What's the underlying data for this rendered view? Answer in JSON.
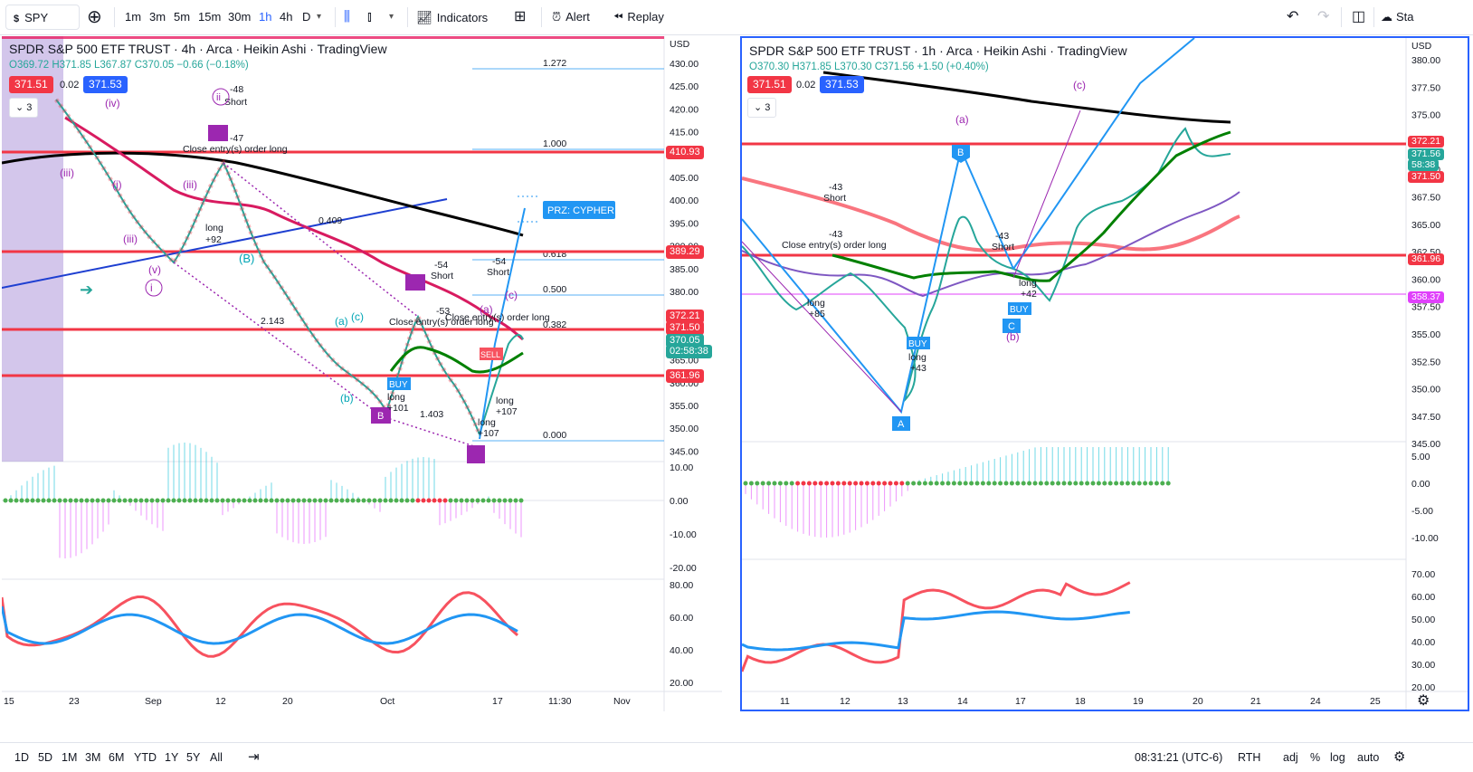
{
  "toolbar": {
    "symbol": "SPY",
    "intervals": [
      "1m",
      "3m",
      "5m",
      "15m",
      "30m",
      "1h",
      "4h",
      "D"
    ],
    "active_interval": "1h",
    "indicators_label": "Indicators",
    "alert_label": "Alert",
    "replay_label": "Replay",
    "right_label": "Sta"
  },
  "left_chart": {
    "title": "SPDR S&P 500 ETF TRUST · 4h · Arca · Heikin Ashi · TradingView",
    "ohlc": "O369.72 H371.85 L367.87 C370.05 −0.66 (−0.18%)",
    "bid": "371.51",
    "spread": "0.02",
    "ask": "371.53",
    "layers_count": "3",
    "currency": "USD",
    "price_axis": [
      "430.00",
      "425.00",
      "420.00",
      "415.00",
      "410.00",
      "405.00",
      "400.00",
      "395.00",
      "390.00",
      "385.00",
      "380.00",
      "375.00",
      "370.00",
      "365.00",
      "360.00",
      "355.00",
      "350.00",
      "345.00"
    ],
    "price_tags": [
      {
        "value": "410.93",
        "color": "#f23645"
      },
      {
        "value": "389.29",
        "color": "#f23645"
      },
      {
        "value": "372.21",
        "color": "#f23645"
      },
      {
        "value": "371.50",
        "color": "#f23645"
      },
      {
        "value": "370.05",
        "color": "#26a69a"
      },
      {
        "value": "02:58:38",
        "color": "#26a69a"
      },
      {
        "value": "361.96",
        "color": "#f23645"
      }
    ],
    "fib_levels": [
      "1.272",
      "1.000",
      "0.618",
      "0.500",
      "0.382",
      "0.000"
    ],
    "annotations": {
      "prz": "PRZ: CYPHER 8",
      "short_48": "-48",
      "short_label": "Short",
      "close_entry": "Close entry(s) order long",
      "minus47": "-47",
      "long_label": "long",
      "plus92": "+92",
      "minus54": "-54",
      "minus53": "-53",
      "plus101": "+101",
      "plus107": "+107",
      "buy": "BUY",
      "sell": "SELL",
      "fib409": "0.409",
      "fib2143": "2.143",
      "fib1403": "1.403",
      "wave_iv": "(iv)",
      "wave_iii": "(iii)",
      "wave_i": "(i)",
      "wave_ii": "ii",
      "wave_v": "(v)",
      "wave_B": "(B)",
      "wave_a": "(a)",
      "wave_b": "(b)",
      "wave_c": "(c)",
      "pt_B": "B",
      "pt_C": "C"
    },
    "macd_axis": [
      "10.00",
      "0.00",
      "-10.00",
      "-20.00"
    ],
    "rsi_axis": [
      "80.00",
      "60.00",
      "40.00",
      "20.00"
    ],
    "time_axis": [
      "15",
      "23",
      "Sep",
      "12",
      "20",
      "Oct",
      "17",
      "11:30",
      "Nov"
    ]
  },
  "right_chart": {
    "title": "SPDR S&P 500 ETF TRUST · 1h · Arca · Heikin Ashi · TradingView",
    "ohlc": "O370.30 H371.85 L370.30 C371.56 +1.50 (+0.40%)",
    "bid": "371.51",
    "spread": "0.02",
    "ask": "371.53",
    "layers_count": "3",
    "currency": "USD",
    "price_axis": [
      "380.00",
      "377.50",
      "375.00",
      "372.50",
      "370.00",
      "367.50",
      "365.00",
      "362.50",
      "360.00",
      "357.50",
      "355.00",
      "352.50",
      "350.00",
      "347.50",
      "345.00"
    ],
    "price_tags": [
      {
        "value": "372.21",
        "color": "#f23645"
      },
      {
        "value": "371.56",
        "color": "#26a69a"
      },
      {
        "value": "58:38",
        "color": "#26a69a"
      },
      {
        "value": "371.50",
        "color": "#f23645"
      },
      {
        "value": "361.96",
        "color": "#f23645"
      },
      {
        "value": "358.37",
        "color": "#e040fb"
      }
    ],
    "annotations": {
      "short_label": "Short",
      "minus43": "-43",
      "close_entry": "Close entry(s) order long",
      "long_label": "long",
      "plus85": "+85",
      "plus43": "+43",
      "plus42": "+42",
      "buy": "BUY",
      "pt_A": "A",
      "pt_B": "B",
      "pt_C": "C",
      "wave_a": "(a)",
      "wave_b": "(b)",
      "wave_c": "(c)"
    },
    "macd_axis": [
      "5.00",
      "0.00",
      "-5.00",
      "-10.00"
    ],
    "rsi_axis": [
      "70.00",
      "60.00",
      "50.00",
      "40.00",
      "30.00",
      "20.00"
    ],
    "time_axis": [
      "11",
      "12",
      "13",
      "14",
      "17",
      "18",
      "19",
      "20",
      "21",
      "24",
      "25"
    ]
  },
  "bottom_bar": {
    "ranges": [
      "1D",
      "5D",
      "1M",
      "3M",
      "6M",
      "YTD",
      "1Y",
      "5Y",
      "All"
    ],
    "clock": "08:31:21 (UTC-6)",
    "session": "RTH",
    "adj": "adj",
    "percent": "%",
    "log": "log",
    "auto": "auto"
  }
}
